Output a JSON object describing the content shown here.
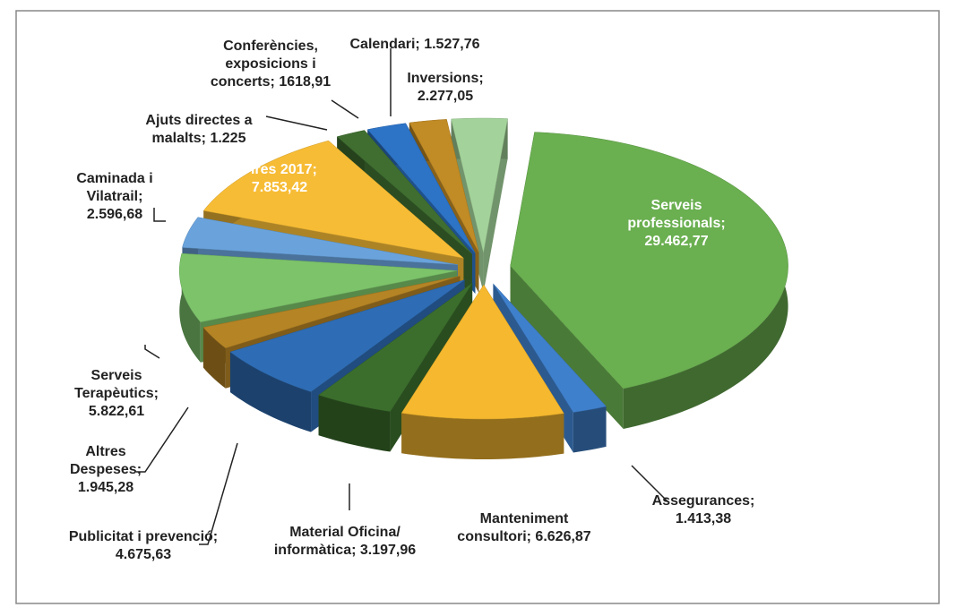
{
  "chart_data": {
    "type": "pie",
    "categories": [
      "Serveis professionals",
      "Assegurances",
      "Manteniment consultori",
      "Material Oficina/ informàtica",
      "Publicitat i prevenció",
      "Altres Despeses",
      "Serveis Terapèutics",
      "Caminada i Vilatrail",
      "Fires 2017",
      "Ajuts directes a malalts",
      "Conferències, exposicions i concerts",
      "Calendari",
      "Inversions"
    ],
    "values": [
      29462.77,
      1413.38,
      6626.87,
      3197.96,
      4675.63,
      1945.28,
      5822.61,
      2596.68,
      7853.42,
      1225,
      1618.91,
      1527.76,
      2277.05
    ],
    "value_labels": [
      "29.462,77",
      "1.413,38",
      "6.626,87",
      "3.197,96",
      "4.675,63",
      "1.945,28",
      "5.822,61",
      "2.596,68",
      "7.853,42",
      "1.225",
      "1618,91",
      "1.527,76",
      "2.277,05"
    ],
    "colors": [
      "#6aaf50",
      "#3f80cc",
      "#f5b82e",
      "#3b6e2c",
      "#2e6db5",
      "#b58425",
      "#7cc36a",
      "#6aa3dc",
      "#f7bc35",
      "#3f6e30",
      "#2d73c6",
      "#c18b25",
      "#a3d39a"
    ]
  }
}
